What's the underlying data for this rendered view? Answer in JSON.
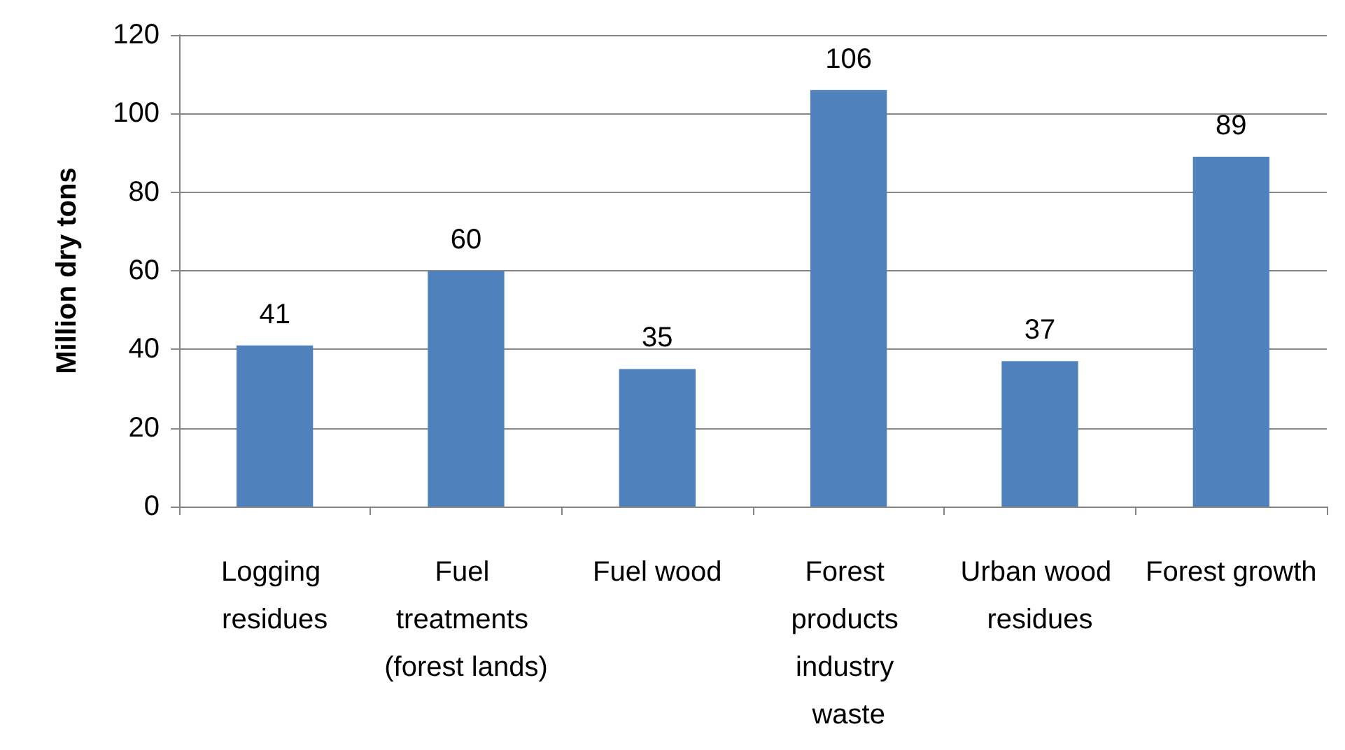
{
  "chart_data": {
    "type": "bar",
    "ylabel": "Million dry tons",
    "categories": [
      "Logging residues",
      "Fuel treatments (forest lands)",
      "Fuel wood",
      "Forest products industry waste",
      "Urban wood residues",
      "Forest growth"
    ],
    "values": [
      41,
      60,
      35,
      106,
      37,
      89
    ],
    "color": "#4f81bd",
    "ylim": [
      0,
      120
    ],
    "yticks": [
      0,
      20,
      40,
      60,
      80,
      100,
      120
    ],
    "grid": "y",
    "data_labels": true
  }
}
